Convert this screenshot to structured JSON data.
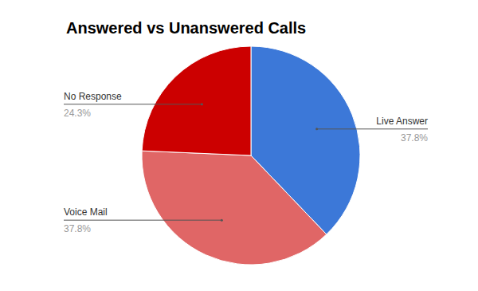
{
  "chart_data": {
    "type": "pie",
    "title": "Answered vs Unanswered Calls",
    "categories": [
      "Live Answer",
      "Voice Mail",
      "No Response"
    ],
    "values": [
      37.8,
      37.8,
      24.3
    ],
    "value_labels": [
      "37.8%",
      "37.8%",
      "24.3%"
    ],
    "colors": [
      "#3c78d8",
      "#e06666",
      "#cc0000"
    ],
    "data_labels": true
  }
}
